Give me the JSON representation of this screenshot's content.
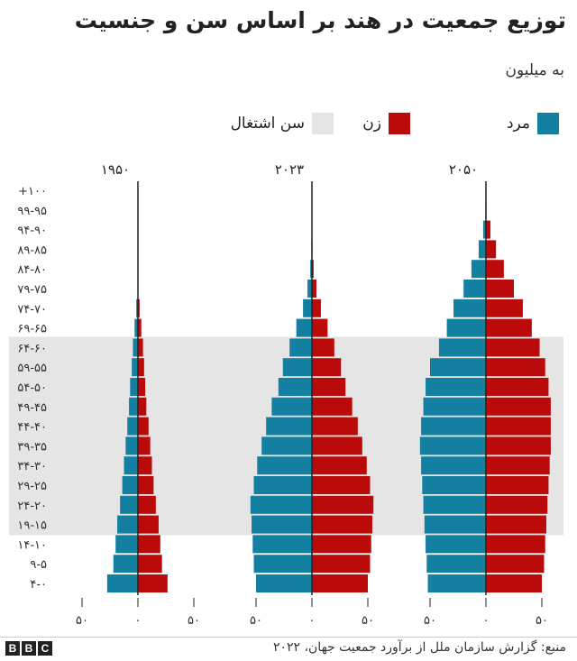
{
  "title": "توزیع جمعیت در هند بر اساس سن و جنسیت",
  "subtitle": "به میلیون",
  "legend": {
    "male": "مرد",
    "female": "زن",
    "working_age": "سن اشتغال"
  },
  "colors": {
    "male": "#1380a1",
    "female": "#bb0a0a",
    "working_age": "#e5e5e5",
    "axis": "#222222"
  },
  "source": "منبع: گزارش سازمان ملل از برآورد جمعیت جهان، ۲۰۲۲",
  "brand": [
    "B",
    "B",
    "C"
  ],
  "chart_data": {
    "type": "bar",
    "orientation": "horizontal-population-pyramid",
    "unit": "million",
    "categories": [
      "+۱۰۰",
      "۹۹-۹۵",
      "۹۴-۹۰",
      "۸۹-۸۵",
      "۸۴-۸۰",
      "۷۹-۷۵",
      "۷۴-۷۰",
      "۶۹-۶۵",
      "۶۴-۶۰",
      "۵۹-۵۵",
      "۵۴-۵۰",
      "۴۹-۴۵",
      "۴۴-۴۰",
      "۳۹-۳۵",
      "۳۴-۳۰",
      "۲۹-۲۵",
      "۲۴-۲۰",
      "۱۹-۱۵",
      "۱۴-۱۰",
      "۹-۵",
      "۴-۰"
    ],
    "working_age_band": [
      "۱۹-۱۵",
      "۶۴-۶۰"
    ],
    "x_tick_labels": [
      "۵۰",
      "۰",
      "۵۰"
    ],
    "xlim": [
      -60,
      60
    ],
    "panels": [
      {
        "year": "۱۹۵۰",
        "male": [
          0,
          0,
          0,
          0,
          0,
          0.3,
          1.5,
          3,
          4.5,
          5.5,
          7,
          8,
          9.5,
          11,
          12.5,
          14,
          16,
          18.5,
          20,
          22,
          27.5
        ],
        "female": [
          0,
          0,
          0,
          0,
          0,
          0.3,
          1.5,
          3,
          4.5,
          5.5,
          6.5,
          7.5,
          9.5,
          11,
          12.5,
          14,
          16,
          18.5,
          20,
          21.5,
          26.5
        ]
      },
      {
        "year": "۲۰۲۳",
        "male": [
          0,
          0,
          0,
          0.5,
          1.5,
          4,
          8,
          14,
          20,
          26,
          30,
          36,
          41,
          45,
          49,
          52,
          55,
          54,
          53,
          52,
          50
        ],
        "female": [
          0,
          0,
          0,
          0.5,
          1.5,
          4,
          8,
          14,
          20,
          26,
          30,
          36,
          41,
          45,
          49,
          52,
          55,
          54,
          53,
          52,
          50
        ]
      },
      {
        "year": "۲۰۵۰",
        "male": [
          0,
          0.5,
          2.5,
          6.5,
          13,
          20,
          29,
          35,
          42,
          50,
          54,
          56,
          58,
          59,
          58,
          57,
          56,
          55,
          54,
          53,
          52
        ],
        "female": [
          0,
          0.5,
          4,
          9,
          16,
          25,
          33,
          41,
          48,
          53,
          56,
          58,
          58,
          58,
          57,
          56,
          55,
          54,
          53,
          52,
          50
        ]
      }
    ]
  }
}
